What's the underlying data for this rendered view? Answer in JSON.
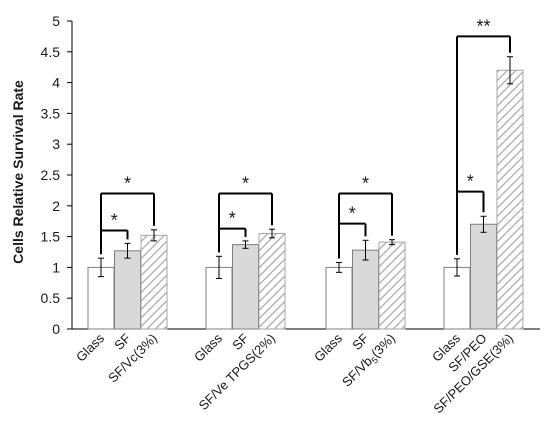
{
  "chart_data": {
    "type": "bar",
    "title": "",
    "xlabel": "",
    "ylabel": "Cells Relative Survival Rate",
    "ylim": [
      0,
      5
    ],
    "yticks": [
      0,
      0.5,
      1,
      1.5,
      2,
      2.5,
      3,
      3.5,
      4,
      4.5,
      5
    ],
    "ytick_labels": [
      "0",
      "0.5",
      "1",
      "1.5",
      "2",
      "2.5",
      "3",
      "3.5",
      "4",
      "4.5",
      "5"
    ],
    "grid": false,
    "legend": "none",
    "colors": {
      "control": "#ffffff",
      "fiber": "#d9d9d9",
      "loaded": "#ffffff",
      "hatch": "#a6a6a6",
      "outline": "#808080",
      "ink": "#000000"
    },
    "groups": [
      {
        "bars": [
          {
            "label": "Glass",
            "value": 1.0,
            "error": 0.15,
            "fill": "control"
          },
          {
            "label": "SF",
            "value": 1.27,
            "error": 0.12,
            "fill": "fiber"
          },
          {
            "label": "SF/Vc(3%)",
            "value": 1.52,
            "error": 0.09,
            "fill": "hatch"
          }
        ],
        "significance": [
          {
            "from": 0,
            "to": 1,
            "label": "*",
            "y": 1.6
          },
          {
            "from": 0,
            "to": 2,
            "label": "*",
            "y": 2.2
          }
        ]
      },
      {
        "bars": [
          {
            "label": "Glass",
            "value": 1.0,
            "error": 0.18,
            "fill": "control"
          },
          {
            "label": "SF",
            "value": 1.37,
            "error": 0.06,
            "fill": "fiber"
          },
          {
            "label": "SF/Ve TPGS(2%)",
            "value": 1.55,
            "error": 0.07,
            "fill": "hatch"
          }
        ],
        "significance": [
          {
            "from": 0,
            "to": 1,
            "label": "*",
            "y": 1.63
          },
          {
            "from": 0,
            "to": 2,
            "label": "*",
            "y": 2.2
          }
        ]
      },
      {
        "bars": [
          {
            "label": "Glass",
            "value": 1.0,
            "error": 0.08,
            "fill": "control"
          },
          {
            "label": "SF",
            "value": 1.28,
            "error": 0.16,
            "fill": "fiber"
          },
          {
            "label": "SF/Vb5(3%)",
            "value": 1.41,
            "error": 0.04,
            "fill": "hatch"
          }
        ],
        "significance": [
          {
            "from": 0,
            "to": 1,
            "label": "*",
            "y": 1.71
          },
          {
            "from": 0,
            "to": 2,
            "label": "*",
            "y": 2.2
          }
        ]
      },
      {
        "bars": [
          {
            "label": "Glass",
            "value": 1.0,
            "error": 0.14,
            "fill": "control"
          },
          {
            "label": "SF/PEO",
            "value": 1.7,
            "error": 0.13,
            "fill": "fiber"
          },
          {
            "label": "SF/PEO/GSE(3%)",
            "value": 4.2,
            "error": 0.22,
            "fill": "hatch"
          }
        ],
        "significance": [
          {
            "from": 0,
            "to": 1,
            "label": "*",
            "y": 2.23
          },
          {
            "from": 0,
            "to": 2,
            "label": "**",
            "y": 4.75
          }
        ]
      }
    ]
  }
}
